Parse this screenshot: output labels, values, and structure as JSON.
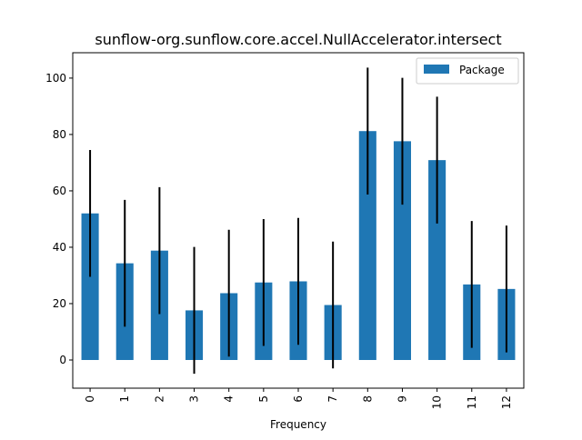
{
  "chart_data": {
    "type": "bar",
    "title": "sunflow-org.sunflow.core.accel.NullAccelerator.intersect",
    "xlabel": "Frequency",
    "ylabel": "",
    "categories": [
      "0",
      "1",
      "2",
      "3",
      "4",
      "5",
      "6",
      "7",
      "8",
      "9",
      "10",
      "11",
      "12"
    ],
    "series": [
      {
        "name": "Package",
        "values": [
          52,
          34.3,
          38.8,
          17.6,
          23.7,
          27.5,
          27.9,
          19.5,
          81.2,
          77.6,
          70.9,
          26.8,
          25.2
        ],
        "error": [
          22.5,
          22.5,
          22.5,
          22.5,
          22.5,
          22.5,
          22.5,
          22.5,
          22.5,
          22.5,
          22.5,
          22.5,
          22.5
        ]
      }
    ],
    "ylim": [
      -10,
      109
    ],
    "yticks": [
      0,
      20,
      40,
      60,
      80,
      100
    ],
    "legend": "top-right",
    "grid": false,
    "colors": {
      "bar": "#1f77b4",
      "errorbar": "#000000"
    }
  }
}
